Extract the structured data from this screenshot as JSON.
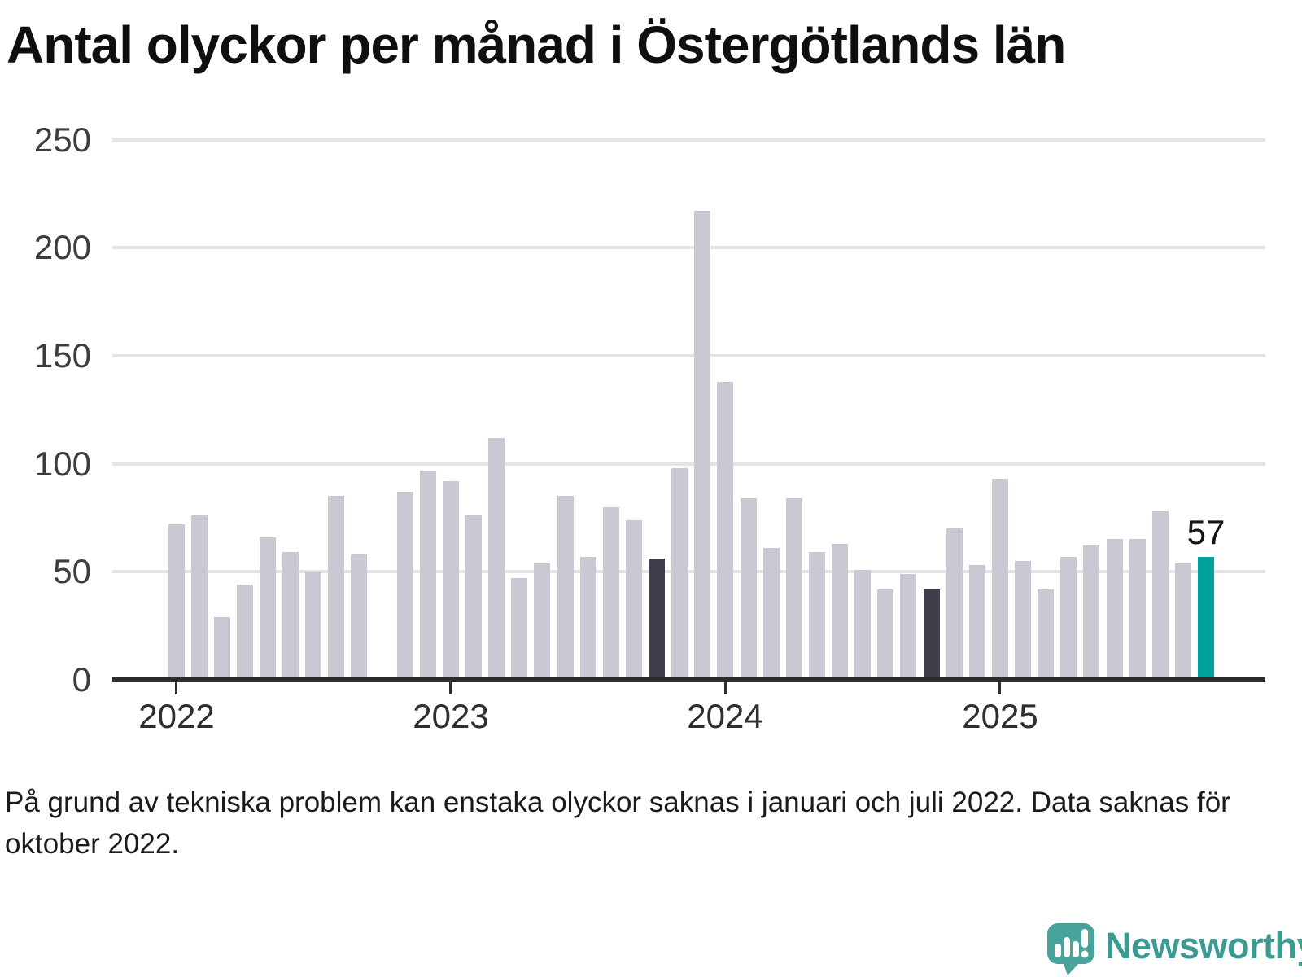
{
  "title": "Antal olyckor per månad i Östergötlands län",
  "footnote": "På grund av tekniska problem kan enstaka olyckor saknas i januari och juli 2022. Data saknas för oktober 2022.",
  "branding": {
    "wordmark": "Newsworthy",
    "logo_icon": "speech-bubble-bar-chart-icon"
  },
  "annotation": {
    "value_label": "57"
  },
  "colors": {
    "background": "#ffffff",
    "bar_default": "#cac8d2",
    "bar_dark": "#413e4c",
    "bar_accent": "#00a29b",
    "gridline": "#e4e4e7",
    "axis": "#2d2d2d",
    "title_text": "#0f0f0f",
    "axis_label_text": "#3d3d3d",
    "footnote_text": "#1b1b1b",
    "brand_teal": "#3d9a93"
  },
  "chart_data": {
    "type": "bar",
    "title": "Antal olyckor per månad i Östergötlands län",
    "xlabel": "",
    "ylabel": "",
    "ylim": [
      0,
      250
    ],
    "grid": true,
    "y_tick_values": [
      0,
      50,
      100,
      150,
      200,
      250
    ],
    "y_tick_labels": [
      "0",
      "50",
      "100",
      "150",
      "200",
      "250"
    ],
    "x_tick_labels": [
      "2022",
      "2023",
      "2024",
      "2025"
    ],
    "x_tick_month_indices": [
      0,
      12,
      24,
      36
    ],
    "missing_months": [
      "2022-10"
    ],
    "bars": [
      {
        "month": "2022-01",
        "value": 72,
        "style": "default"
      },
      {
        "month": "2022-02",
        "value": 76,
        "style": "default"
      },
      {
        "month": "2022-03",
        "value": 29,
        "style": "default"
      },
      {
        "month": "2022-04",
        "value": 44,
        "style": "default"
      },
      {
        "month": "2022-05",
        "value": 66,
        "style": "default"
      },
      {
        "month": "2022-06",
        "value": 59,
        "style": "default"
      },
      {
        "month": "2022-07",
        "value": 50,
        "style": "default"
      },
      {
        "month": "2022-08",
        "value": 85,
        "style": "default"
      },
      {
        "month": "2022-09",
        "value": 58,
        "style": "default"
      },
      {
        "month": "2022-10",
        "value": null,
        "style": "default"
      },
      {
        "month": "2022-11",
        "value": 87,
        "style": "default"
      },
      {
        "month": "2022-12",
        "value": 97,
        "style": "default"
      },
      {
        "month": "2023-01",
        "value": 92,
        "style": "default"
      },
      {
        "month": "2023-02",
        "value": 76,
        "style": "default"
      },
      {
        "month": "2023-03",
        "value": 112,
        "style": "default"
      },
      {
        "month": "2023-04",
        "value": 47,
        "style": "default"
      },
      {
        "month": "2023-05",
        "value": 54,
        "style": "default"
      },
      {
        "month": "2023-06",
        "value": 85,
        "style": "default"
      },
      {
        "month": "2023-07",
        "value": 57,
        "style": "default"
      },
      {
        "month": "2023-08",
        "value": 80,
        "style": "default"
      },
      {
        "month": "2023-09",
        "value": 74,
        "style": "default"
      },
      {
        "month": "2023-10",
        "value": 56,
        "style": "dark"
      },
      {
        "month": "2023-11",
        "value": 98,
        "style": "default"
      },
      {
        "month": "2023-12",
        "value": 217,
        "style": "default"
      },
      {
        "month": "2024-01",
        "value": 138,
        "style": "default"
      },
      {
        "month": "2024-02",
        "value": 84,
        "style": "default"
      },
      {
        "month": "2024-03",
        "value": 61,
        "style": "default"
      },
      {
        "month": "2024-04",
        "value": 84,
        "style": "default"
      },
      {
        "month": "2024-05",
        "value": 59,
        "style": "default"
      },
      {
        "month": "2024-06",
        "value": 63,
        "style": "default"
      },
      {
        "month": "2024-07",
        "value": 51,
        "style": "default"
      },
      {
        "month": "2024-08",
        "value": 42,
        "style": "default"
      },
      {
        "month": "2024-09",
        "value": 49,
        "style": "default"
      },
      {
        "month": "2024-10",
        "value": 42,
        "style": "dark"
      },
      {
        "month": "2024-11",
        "value": 70,
        "style": "default"
      },
      {
        "month": "2024-12",
        "value": 53,
        "style": "default"
      },
      {
        "month": "2025-01",
        "value": 93,
        "style": "default"
      },
      {
        "month": "2025-02",
        "value": 55,
        "style": "default"
      },
      {
        "month": "2025-03",
        "value": 42,
        "style": "default"
      },
      {
        "month": "2025-04",
        "value": 57,
        "style": "default"
      },
      {
        "month": "2025-05",
        "value": 62,
        "style": "default"
      },
      {
        "month": "2025-06",
        "value": 65,
        "style": "default"
      },
      {
        "month": "2025-07",
        "value": 65,
        "style": "default"
      },
      {
        "month": "2025-08",
        "value": 78,
        "style": "default"
      },
      {
        "month": "2025-09",
        "value": 54,
        "style": "default"
      },
      {
        "month": "2025-10",
        "value": 57,
        "style": "accent",
        "annotated": true
      }
    ]
  }
}
